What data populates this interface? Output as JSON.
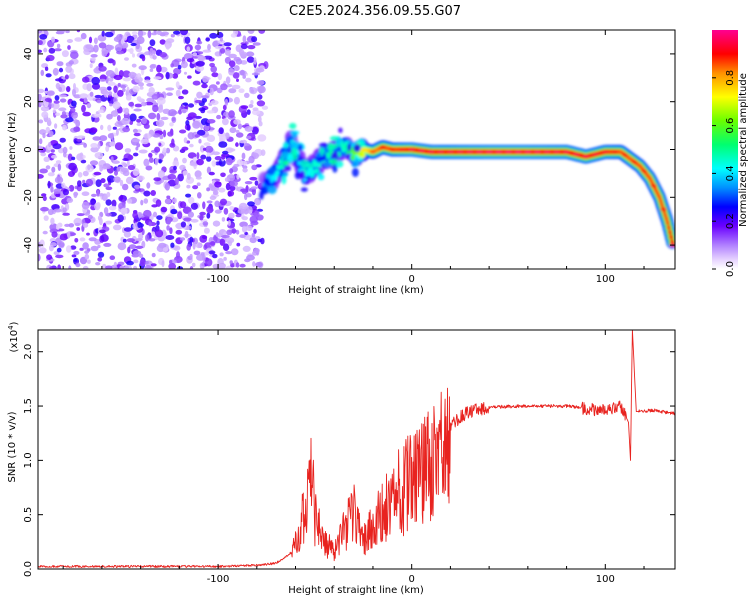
{
  "figure": {
    "title": "C2E5.2024.356.09.55.G07"
  },
  "chart_data": [
    {
      "type": "heatmap",
      "name": "spectrogram",
      "xlabel": "Height of straight line (km)",
      "ylabel": "Frequency (Hz)",
      "xlim": [
        -193,
        136
      ],
      "ylim": [
        -50,
        50
      ],
      "x_ticks": [
        -100,
        0,
        100
      ],
      "y_ticks": [
        -40,
        -20,
        0,
        20,
        40
      ],
      "colorbar": {
        "label": "Normalized spectral amplitude",
        "ticks": [
          0.0,
          0.2,
          0.4,
          0.6,
          0.8
        ],
        "range": [
          0,
          1
        ],
        "stops": [
          {
            "v": 0.0,
            "color": "#ffffff"
          },
          {
            "v": 0.04,
            "color": "#e6d2ff"
          },
          {
            "v": 0.1,
            "color": "#b080ff"
          },
          {
            "v": 0.18,
            "color": "#6a00ff"
          },
          {
            "v": 0.26,
            "color": "#0000ff"
          },
          {
            "v": 0.34,
            "color": "#0090ff"
          },
          {
            "v": 0.42,
            "color": "#00ffff"
          },
          {
            "v": 0.52,
            "color": "#00ff70"
          },
          {
            "v": 0.62,
            "color": "#6aff00"
          },
          {
            "v": 0.72,
            "color": "#ffff00"
          },
          {
            "v": 0.82,
            "color": "#ff9000"
          },
          {
            "v": 0.9,
            "color": "#ff0000"
          },
          {
            "v": 1.0,
            "color": "#ff0090"
          }
        ]
      },
      "noise_region_x": [
        -193,
        -77
      ],
      "ridge": [
        {
          "x": -76,
          "f": -15,
          "a": 0.35
        },
        {
          "x": -72,
          "f": -12,
          "a": 0.4
        },
        {
          "x": -68,
          "f": -8,
          "a": 0.45
        },
        {
          "x": -65,
          "f": -4,
          "a": 0.5
        },
        {
          "x": -62,
          "f": 3,
          "a": 0.45
        },
        {
          "x": -58,
          "f": -5,
          "a": 0.4
        },
        {
          "x": -55,
          "f": -10,
          "a": 0.4
        },
        {
          "x": -50,
          "f": -7,
          "a": 0.45
        },
        {
          "x": -45,
          "f": -3,
          "a": 0.45
        },
        {
          "x": -40,
          "f": -2,
          "a": 0.5
        },
        {
          "x": -35,
          "f": 3,
          "a": 0.45
        },
        {
          "x": -30,
          "f": -2,
          "a": 0.6
        },
        {
          "x": -25,
          "f": 0,
          "a": 0.7
        },
        {
          "x": -20,
          "f": -1,
          "a": 0.8
        },
        {
          "x": -15,
          "f": 1,
          "a": 0.85
        },
        {
          "x": -10,
          "f": 0,
          "a": 0.85
        },
        {
          "x": 0,
          "f": 0,
          "a": 0.9
        },
        {
          "x": 10,
          "f": -1,
          "a": 0.9
        },
        {
          "x": 20,
          "f": -1,
          "a": 0.9
        },
        {
          "x": 40,
          "f": -1,
          "a": 0.92
        },
        {
          "x": 60,
          "f": -1,
          "a": 0.92
        },
        {
          "x": 80,
          "f": -1,
          "a": 0.9
        },
        {
          "x": 90,
          "f": -3,
          "a": 0.9
        },
        {
          "x": 100,
          "f": -1,
          "a": 0.88
        },
        {
          "x": 108,
          "f": -1,
          "a": 0.85
        },
        {
          "x": 113,
          "f": -4,
          "a": 0.85
        },
        {
          "x": 118,
          "f": -7,
          "a": 0.85
        },
        {
          "x": 123,
          "f": -12,
          "a": 0.85
        },
        {
          "x": 128,
          "f": -20,
          "a": 0.85
        },
        {
          "x": 132,
          "f": -30,
          "a": 0.85
        },
        {
          "x": 135,
          "f": -40,
          "a": 0.9
        }
      ]
    },
    {
      "type": "line",
      "name": "snr",
      "xlabel": "Height of straight line (km)",
      "ylabel": "SNR (10 * v/v)",
      "scale_label": "(x10",
      "scale_exp": "4",
      "scale_close": ")",
      "xlim": [
        -193,
        136
      ],
      "ylim": [
        0,
        2.2
      ],
      "x_ticks": [
        -100,
        0,
        100
      ],
      "y_ticks": [
        0.0,
        0.5,
        1.0,
        1.5,
        2.0
      ],
      "line_color": "#e8231f",
      "series": [
        {
          "x": -193,
          "y": 0.02
        },
        {
          "x": -150,
          "y": 0.02
        },
        {
          "x": -100,
          "y": 0.02
        },
        {
          "x": -80,
          "y": 0.03
        },
        {
          "x": -70,
          "y": 0.05
        },
        {
          "x": -62,
          "y": 0.15
        },
        {
          "x": -58,
          "y": 0.4
        },
        {
          "x": -55,
          "y": 0.7
        },
        {
          "x": -52,
          "y": 1.0
        },
        {
          "x": -50,
          "y": 0.6
        },
        {
          "x": -46,
          "y": 0.3
        },
        {
          "x": -40,
          "y": 0.2
        },
        {
          "x": -35,
          "y": 0.4
        },
        {
          "x": -30,
          "y": 0.6
        },
        {
          "x": -25,
          "y": 0.3
        },
        {
          "x": -20,
          "y": 0.45
        },
        {
          "x": -15,
          "y": 0.6
        },
        {
          "x": -10,
          "y": 0.75
        },
        {
          "x": -5,
          "y": 0.85
        },
        {
          "x": 0,
          "y": 0.95
        },
        {
          "x": 5,
          "y": 1.05
        },
        {
          "x": 10,
          "y": 1.15
        },
        {
          "x": 15,
          "y": 1.25
        },
        {
          "x": 20,
          "y": 1.32
        },
        {
          "x": 25,
          "y": 1.4
        },
        {
          "x": 30,
          "y": 1.45
        },
        {
          "x": 40,
          "y": 1.49
        },
        {
          "x": 60,
          "y": 1.5
        },
        {
          "x": 80,
          "y": 1.5
        },
        {
          "x": 90,
          "y": 1.48
        },
        {
          "x": 100,
          "y": 1.46
        },
        {
          "x": 108,
          "y": 1.5
        },
        {
          "x": 112,
          "y": 1.35
        },
        {
          "x": 113,
          "y": 1.0
        },
        {
          "x": 114,
          "y": 2.2
        },
        {
          "x": 116,
          "y": 1.45
        },
        {
          "x": 125,
          "y": 1.46
        },
        {
          "x": 136,
          "y": 1.43
        }
      ]
    }
  ]
}
